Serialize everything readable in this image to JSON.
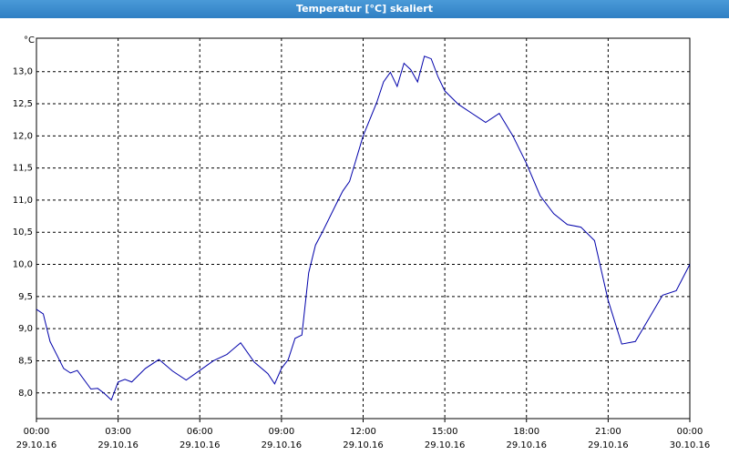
{
  "chart_data": {
    "type": "line",
    "title": "Temperatur [°C] skaliert",
    "y_unit": "°C",
    "x": [
      0,
      0.25,
      0.5,
      1,
      1.25,
      1.5,
      2,
      2.25,
      2.5,
      2.75,
      3,
      3.25,
      3.5,
      4,
      4.5,
      5,
      5.5,
      6,
      6.5,
      7,
      7.5,
      8,
      8.5,
      8.75,
      9,
      9.25,
      9.5,
      9.75,
      10,
      10.25,
      10.5,
      11,
      11.25,
      11.5,
      12,
      12.5,
      12.75,
      13,
      13.25,
      13.5,
      13.75,
      14,
      14.25,
      14.5,
      14.75,
      15,
      15.5,
      16,
      16.5,
      17,
      17.5,
      18,
      18.5,
      19,
      19.5,
      20,
      20.5,
      21,
      21.5,
      22,
      22.5,
      23,
      23.5,
      24
    ],
    "series": [
      {
        "name": "Temperatur",
        "color": "#0000aa",
        "values": [
          9.3,
          9.23,
          8.8,
          8.38,
          8.31,
          8.35,
          8.06,
          8.07,
          7.99,
          7.89,
          8.17,
          8.21,
          8.17,
          8.38,
          8.52,
          8.34,
          8.2,
          8.35,
          8.5,
          8.6,
          8.78,
          8.48,
          8.3,
          8.14,
          8.38,
          8.52,
          8.85,
          8.9,
          9.87,
          10.3,
          10.5,
          10.93,
          11.14,
          11.29,
          12.0,
          12.52,
          12.84,
          12.99,
          12.77,
          13.13,
          13.03,
          12.84,
          13.24,
          13.2,
          12.92,
          12.7,
          12.49,
          12.35,
          12.21,
          12.35,
          12.0,
          11.57,
          11.07,
          10.79,
          10.62,
          10.58,
          10.37,
          9.44,
          8.76,
          8.8,
          9.16,
          9.52,
          9.59,
          10.0
        ]
      }
    ],
    "xlim": [
      0,
      24
    ],
    "xticks": [
      {
        "value": 0,
        "label": "00:00",
        "date": "29.10.16"
      },
      {
        "value": 3,
        "label": "03:00",
        "date": "29.10.16"
      },
      {
        "value": 6,
        "label": "06:00",
        "date": "29.10.16"
      },
      {
        "value": 9,
        "label": "09:00",
        "date": "29.10.16"
      },
      {
        "value": 12,
        "label": "12:00",
        "date": "29.10.16"
      },
      {
        "value": 15,
        "label": "15:00",
        "date": "29.10.16"
      },
      {
        "value": 18,
        "label": "18:00",
        "date": "29.10.16"
      },
      {
        "value": 21,
        "label": "21:00",
        "date": "29.10.16"
      },
      {
        "value": 24,
        "label": "00:00",
        "date": "30.10.16"
      }
    ],
    "ylim": [
      7.6,
      13.52
    ],
    "yticks": [
      {
        "value": 8,
        "label": "8,0"
      },
      {
        "value": 8.5,
        "label": "8,5"
      },
      {
        "value": 9,
        "label": "9,0"
      },
      {
        "value": 9.5,
        "label": "9,5"
      },
      {
        "value": 10,
        "label": "10,0"
      },
      {
        "value": 10.5,
        "label": "10,5"
      },
      {
        "value": 11,
        "label": "11,0"
      },
      {
        "value": 11.5,
        "label": "11,5"
      },
      {
        "value": 12,
        "label": "12,0"
      },
      {
        "value": 12.5,
        "label": "12,5"
      },
      {
        "value": 13,
        "label": "13,0"
      }
    ],
    "grid": true
  }
}
